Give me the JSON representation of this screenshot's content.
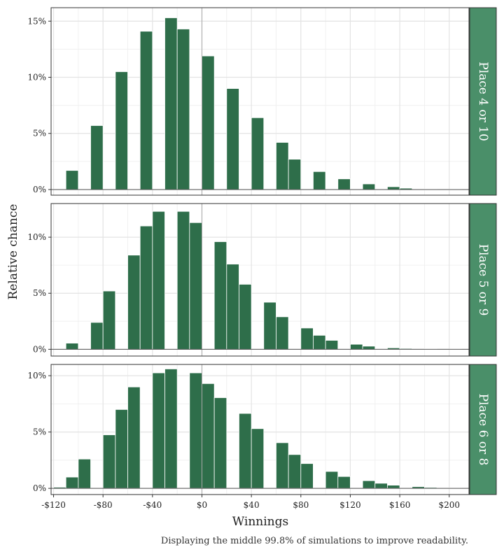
{
  "chart_data": {
    "type": "bar",
    "xlabel": "Winnings",
    "ylabel": "Relative chance",
    "caption": "Displaying the middle 99.8% of simulations to improve readability.",
    "x_ticks": [
      {
        "value": -120,
        "label": "-$120"
      },
      {
        "value": -80,
        "label": "-$80"
      },
      {
        "value": -40,
        "label": "-$40"
      },
      {
        "value": 0,
        "label": "$0"
      },
      {
        "value": 40,
        "label": "$40"
      },
      {
        "value": 80,
        "label": "$80"
      },
      {
        "value": 120,
        "label": "$120"
      },
      {
        "value": 160,
        "label": "$160"
      },
      {
        "value": 200,
        "label": "$200"
      }
    ],
    "xlim": [
      -122,
      216
    ],
    "bin_width": 10,
    "bar_color": "#2e6e4a",
    "strip_color": "#4a8f69",
    "panels": [
      {
        "name": "Place 4 or 10",
        "ylim": [
          -0.5,
          16.2
        ],
        "y_ticks": [
          {
            "value": 0,
            "label": "0%"
          },
          {
            "value": 5,
            "label": "5%"
          },
          {
            "value": 10,
            "label": "10%"
          },
          {
            "value": 15,
            "label": "15%"
          }
        ],
        "bars": [
          {
            "x": -105,
            "y": 1.7
          },
          {
            "x": -85,
            "y": 5.7
          },
          {
            "x": -65,
            "y": 10.5
          },
          {
            "x": -45,
            "y": 14.1
          },
          {
            "x": -25,
            "y": 15.3
          },
          {
            "x": -15,
            "y": 14.3
          },
          {
            "x": 5,
            "y": 11.9
          },
          {
            "x": 25,
            "y": 9.0
          },
          {
            "x": 45,
            "y": 6.4
          },
          {
            "x": 65,
            "y": 4.2
          },
          {
            "x": 75,
            "y": 2.7
          },
          {
            "x": 95,
            "y": 1.6
          },
          {
            "x": 115,
            "y": 0.95
          },
          {
            "x": 135,
            "y": 0.5
          },
          {
            "x": 155,
            "y": 0.25
          },
          {
            "x": 165,
            "y": 0.12
          },
          {
            "x": 185,
            "y": 0.05
          },
          {
            "x": 205,
            "y": 0.03
          }
        ]
      },
      {
        "name": "Place 5 or 9",
        "ylim": [
          -0.6,
          13.0
        ],
        "y_ticks": [
          {
            "value": 0,
            "label": "0%"
          },
          {
            "value": 5,
            "label": "5%"
          },
          {
            "value": 10,
            "label": "10%"
          }
        ],
        "bars": [
          {
            "x": -105,
            "y": 0.55
          },
          {
            "x": -85,
            "y": 2.4
          },
          {
            "x": -75,
            "y": 5.2
          },
          {
            "x": -55,
            "y": 8.4
          },
          {
            "x": -45,
            "y": 11.0
          },
          {
            "x": -35,
            "y": 12.3
          },
          {
            "x": -15,
            "y": 12.3
          },
          {
            "x": -5,
            "y": 11.3
          },
          {
            "x": 15,
            "y": 9.6
          },
          {
            "x": 25,
            "y": 7.6
          },
          {
            "x": 35,
            "y": 5.8
          },
          {
            "x": 55,
            "y": 4.2
          },
          {
            "x": 65,
            "y": 2.9
          },
          {
            "x": 85,
            "y": 1.9
          },
          {
            "x": 95,
            "y": 1.25
          },
          {
            "x": 105,
            "y": 0.8
          },
          {
            "x": 125,
            "y": 0.45
          },
          {
            "x": 135,
            "y": 0.28
          },
          {
            "x": 155,
            "y": 0.13
          },
          {
            "x": 165,
            "y": 0.07
          },
          {
            "x": 185,
            "y": 0.03
          },
          {
            "x": 205,
            "y": 0.02
          }
        ]
      },
      {
        "name": "Place 6 or 8",
        "ylim": [
          -0.55,
          11.0
        ],
        "y_ticks": [
          {
            "value": 0,
            "label": "0%"
          },
          {
            "value": 5,
            "label": "5%"
          },
          {
            "value": 10,
            "label": "10%"
          }
        ],
        "bars": [
          {
            "x": -115,
            "y": 0.1
          },
          {
            "x": -105,
            "y": 1.0
          },
          {
            "x": -95,
            "y": 2.6
          },
          {
            "x": -75,
            "y": 4.75
          },
          {
            "x": -65,
            "y": 7.0
          },
          {
            "x": -55,
            "y": 9.0
          },
          {
            "x": -35,
            "y": 10.25
          },
          {
            "x": -25,
            "y": 10.6
          },
          {
            "x": -5,
            "y": 10.25
          },
          {
            "x": 5,
            "y": 9.3
          },
          {
            "x": 15,
            "y": 8.05
          },
          {
            "x": 35,
            "y": 6.65
          },
          {
            "x": 45,
            "y": 5.3
          },
          {
            "x": 65,
            "y": 4.05
          },
          {
            "x": 75,
            "y": 3.0
          },
          {
            "x": 85,
            "y": 2.2
          },
          {
            "x": 105,
            "y": 1.5
          },
          {
            "x": 115,
            "y": 1.05
          },
          {
            "x": 135,
            "y": 0.68
          },
          {
            "x": 145,
            "y": 0.45
          },
          {
            "x": 155,
            "y": 0.28
          },
          {
            "x": 175,
            "y": 0.15
          },
          {
            "x": 185,
            "y": 0.08
          },
          {
            "x": 205,
            "y": 0.04
          }
        ]
      }
    ]
  }
}
